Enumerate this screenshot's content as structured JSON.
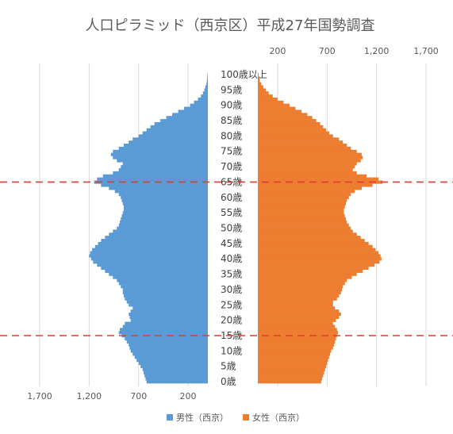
{
  "chart_data": {
    "type": "bar",
    "orientation": "horizontal-population-pyramid",
    "title": "人口ピラミッド（西京区）平成27年国勢調査",
    "age_labels": [
      "0歳",
      "5歳",
      "10歳",
      "15歳",
      "20歳",
      "25歳",
      "30歳",
      "35歳",
      "40歳",
      "45歳",
      "50歳",
      "55歳",
      "60歳",
      "65歳",
      "70歳",
      "75歳",
      "80歳",
      "85歳",
      "90歳",
      "95歳",
      "100歳以上"
    ],
    "x_ticks": [
      "1,700",
      "1,200",
      "700",
      "200"
    ],
    "xlim": [
      0,
      1700
    ],
    "age_groups_every": 1,
    "series": [
      {
        "name": "男性（西京）",
        "color": "#5B9BD5",
        "side": "left",
        "values": [
          620,
          630,
          640,
          650,
          660,
          680,
          700,
          720,
          740,
          760,
          780,
          790,
          800,
          820,
          840,
          870,
          900,
          890,
          860,
          840,
          780,
          790,
          800,
          780,
          760,
          800,
          820,
          840,
          850,
          860,
          860,
          880,
          900,
          920,
          960,
          1000,
          1040,
          1080,
          1120,
          1160,
          1180,
          1200,
          1190,
          1170,
          1140,
          1110,
          1080,
          1040,
          1000,
          960,
          920,
          900,
          890,
          880,
          870,
          860,
          850,
          850,
          860,
          870,
          880,
          900,
          940,
          1000,
          1080,
          1150,
          1120,
          1060,
          960,
          900,
          880,
          860,
          920,
          960,
          980,
          960,
          900,
          850,
          800,
          760,
          700,
          660,
          620,
          580,
          540,
          480,
          420,
          360,
          300,
          240,
          180,
          140,
          100,
          70,
          50,
          35,
          25,
          15,
          10,
          6,
          4
        ]
      },
      {
        "name": "女性（西京）",
        "color": "#ED7D31",
        "side": "right",
        "values": [
          640,
          650,
          660,
          670,
          680,
          690,
          700,
          710,
          720,
          730,
          740,
          760,
          770,
          780,
          790,
          800,
          810,
          800,
          780,
          760,
          790,
          820,
          840,
          820,
          780,
          760,
          760,
          800,
          820,
          840,
          850,
          860,
          880,
          900,
          950,
          1000,
          1060,
          1120,
          1180,
          1230,
          1250,
          1240,
          1220,
          1190,
          1160,
          1120,
          1080,
          1040,
          1000,
          960,
          940,
          920,
          900,
          890,
          880,
          870,
          870,
          880,
          890,
          900,
          920,
          940,
          980,
          1050,
          1160,
          1260,
          1220,
          1100,
          1000,
          960,
          980,
          1000,
          1040,
          1060,
          1050,
          1000,
          940,
          900,
          860,
          820,
          760,
          720,
          690,
          660,
          630,
          590,
          550,
          500,
          440,
          380,
          320,
          260,
          200,
          150,
          110,
          80,
          55,
          35,
          20,
          12,
          8
        ]
      }
    ],
    "reference_lines": [
      {
        "label": "65歳",
        "style": "dashed",
        "color": "#E03C31"
      },
      {
        "label": "15歳",
        "style": "dashed",
        "color": "#E03C31"
      }
    ],
    "legend_position": "bottom-center",
    "grid": "vertical"
  }
}
